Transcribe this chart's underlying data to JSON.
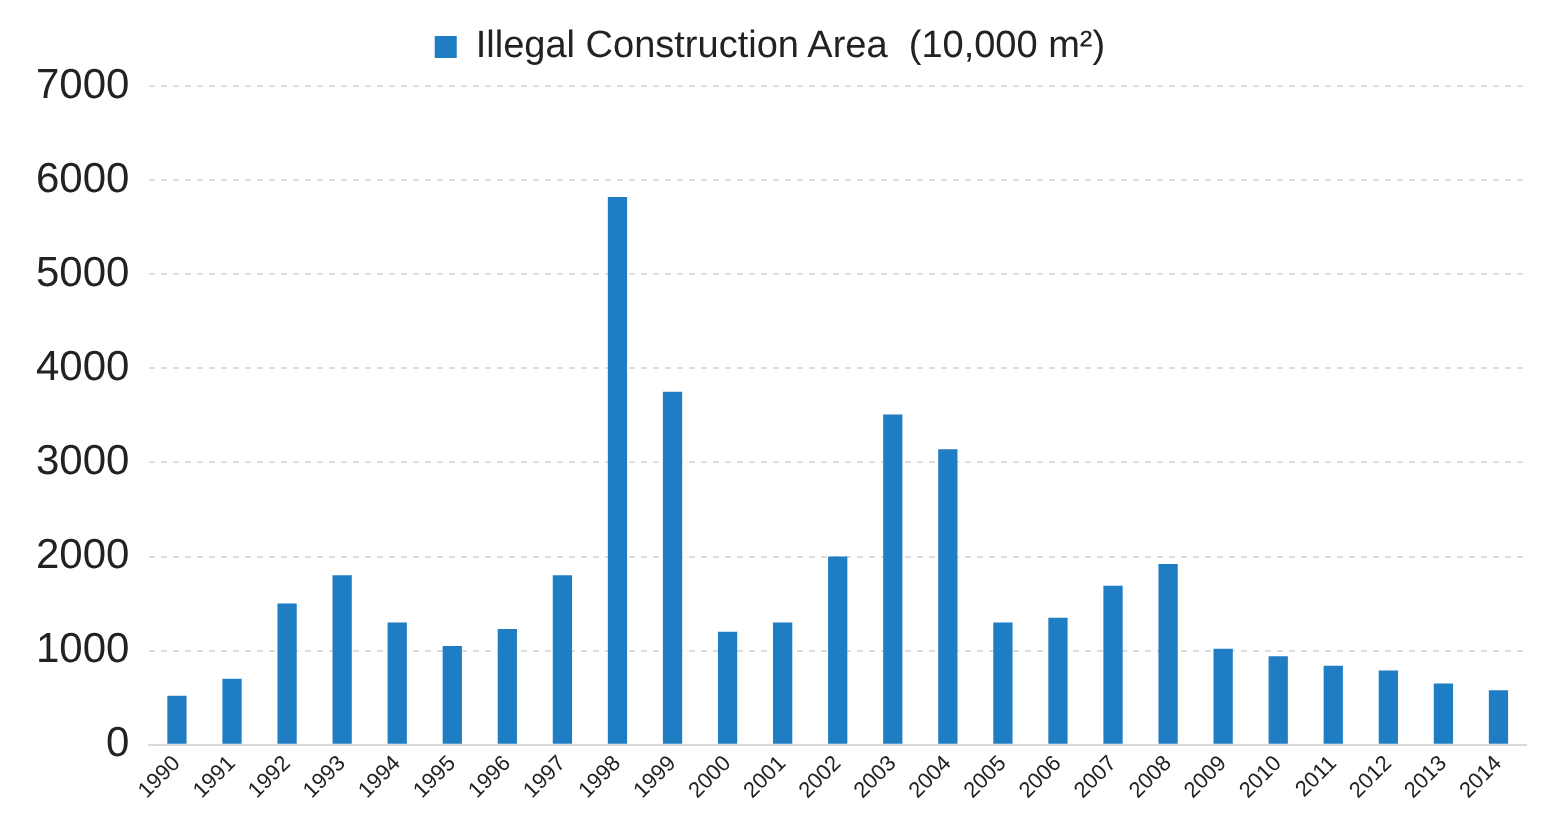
{
  "chart_data": {
    "type": "bar",
    "categories": [
      "1990",
      "1991",
      "1992",
      "1993",
      "1994",
      "1995",
      "1996",
      "1997",
      "1998",
      "1999",
      "2000",
      "2001",
      "2002",
      "2003",
      "2004",
      "2005",
      "2006",
      "2007",
      "2008",
      "2009",
      "2010",
      "2011",
      "2012",
      "2013",
      "2014"
    ],
    "series": [
      {
        "name": "Illegal Construction Area  (10,000 m²)",
        "color": "#1f7dc3",
        "values": [
          520,
          700,
          1500,
          1800,
          1300,
          1050,
          1230,
          1800,
          5820,
          3750,
          1200,
          1300,
          2000,
          3510,
          3140,
          1300,
          1350,
          1690,
          1920,
          1020,
          940,
          840,
          790,
          650,
          580
        ]
      }
    ],
    "ylim": [
      0,
      7000
    ],
    "yticks": [
      0,
      1000,
      2000,
      3000,
      4000,
      5000,
      6000,
      7000
    ],
    "grid": "y",
    "legend": "top"
  }
}
